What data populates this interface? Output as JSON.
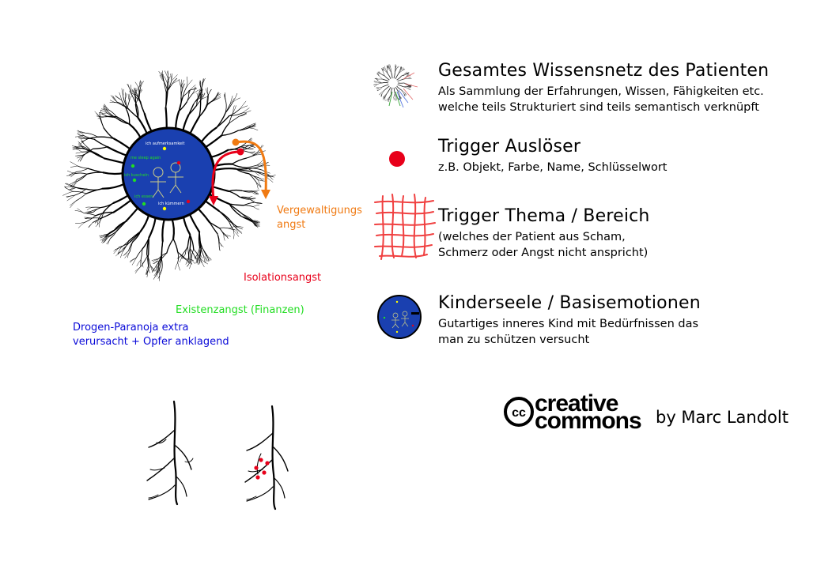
{
  "legend": [
    {
      "title": "Gesamtes Wissensnetz des Patienten",
      "desc": [
        "Als Sammlung der Erfahrungen, Wissen, Fähigkeiten etc.",
        "welche teils Strukturiert sind teils semantisch verknüpft"
      ],
      "icon": "knowledge-network-icon"
    },
    {
      "title": "Trigger Auslöser",
      "desc": [
        "z.B. Objekt, Farbe, Name, Schlüsselwort"
      ],
      "icon": "red-dot-icon"
    },
    {
      "title": "Trigger Thema / Bereich",
      "desc": [
        "(welches der Patient aus Scham,",
        "Schmerz oder Angst nicht anspricht)"
      ],
      "icon": "red-grid-icon"
    },
    {
      "title": "Kinderseele / Basisemotionen",
      "desc": [
        "Gutartiges inneres Kind mit Bedürfnissen das",
        "man zu schützen versucht"
      ],
      "icon": "inner-child-icon"
    }
  ],
  "labels": {
    "vergewaltigung": [
      "Vergewaltigungs",
      "angst"
    ],
    "isolation": "Isolationsangst",
    "existenz": "Existenzangst (Finanzen)",
    "drogen": [
      "Drogen-Paranoja extra",
      "verursacht + Opfer anklagend"
    ]
  },
  "core": {
    "words": [
      "ich aufmerksamkeit",
      "me sleep again",
      "ich kuscheln",
      "ich essen",
      "ich kümmern"
    ]
  },
  "license": {
    "cc_line1": "creative",
    "cc_line2": "commons",
    "author": "by Marc Landolt"
  },
  "colors": {
    "core_blue": "#1a40b0",
    "trigger_red": "#e8001a",
    "orange": "#f07a12",
    "green": "#22dd22",
    "dark_blue": "#0a0ad8",
    "label_red": "#e8001a"
  }
}
